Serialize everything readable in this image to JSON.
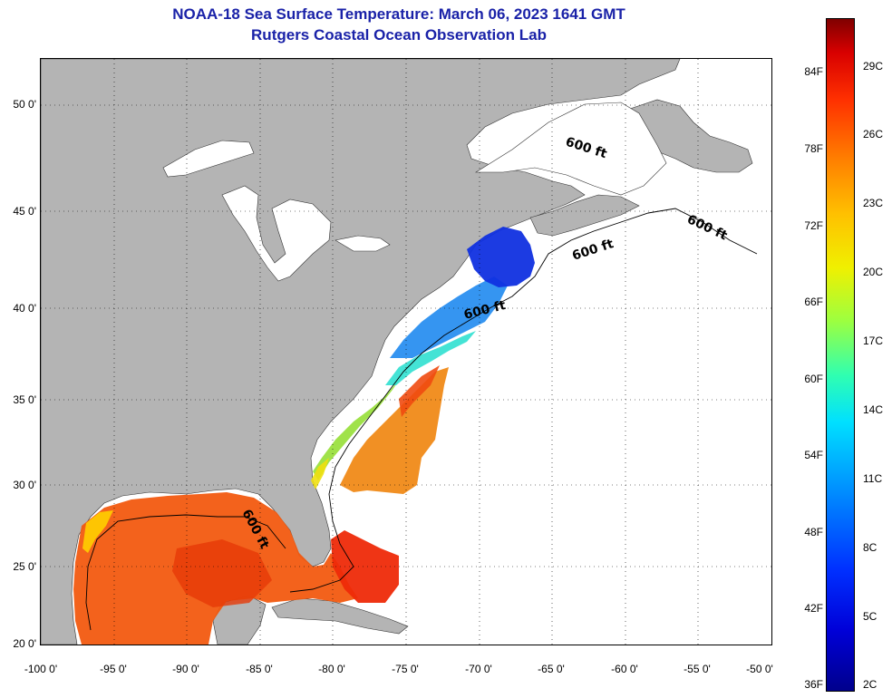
{
  "header": {
    "title": "NOAA-18 Sea Surface Temperature:  March 06, 2023 1641 GMT",
    "subtitle": "Rutgers Coastal Ocean Observation Lab"
  },
  "map": {
    "lon_range": [
      -100,
      -50
    ],
    "lat_range": [
      20,
      52
    ],
    "lat_labels": [
      "50 0'",
      "45 0'",
      "40 0'",
      "35 0'",
      "30 0'",
      "25 0'",
      "20 0'"
    ],
    "lon_labels": [
      "-100 0'",
      "-95 0'",
      "-90 0'",
      "-85 0'",
      "-80 0'",
      "-75 0'",
      "-70 0'",
      "-65 0'",
      "-60 0'",
      "-55 0'",
      "-50 0'"
    ],
    "grid": "dotted",
    "land_color": "#b4b4b4",
    "no_data_color": "#ffffff",
    "contour_label": "600 ft"
  },
  "colorbar": {
    "fahrenheit_labels": [
      "84F",
      "78F",
      "72F",
      "66F",
      "60F",
      "54F",
      "48F",
      "42F",
      "36F"
    ],
    "celsius_labels": [
      "29C",
      "26C",
      "23C",
      "20C",
      "17C",
      "14C",
      "11C",
      "8C",
      "5C",
      "2C"
    ]
  }
}
